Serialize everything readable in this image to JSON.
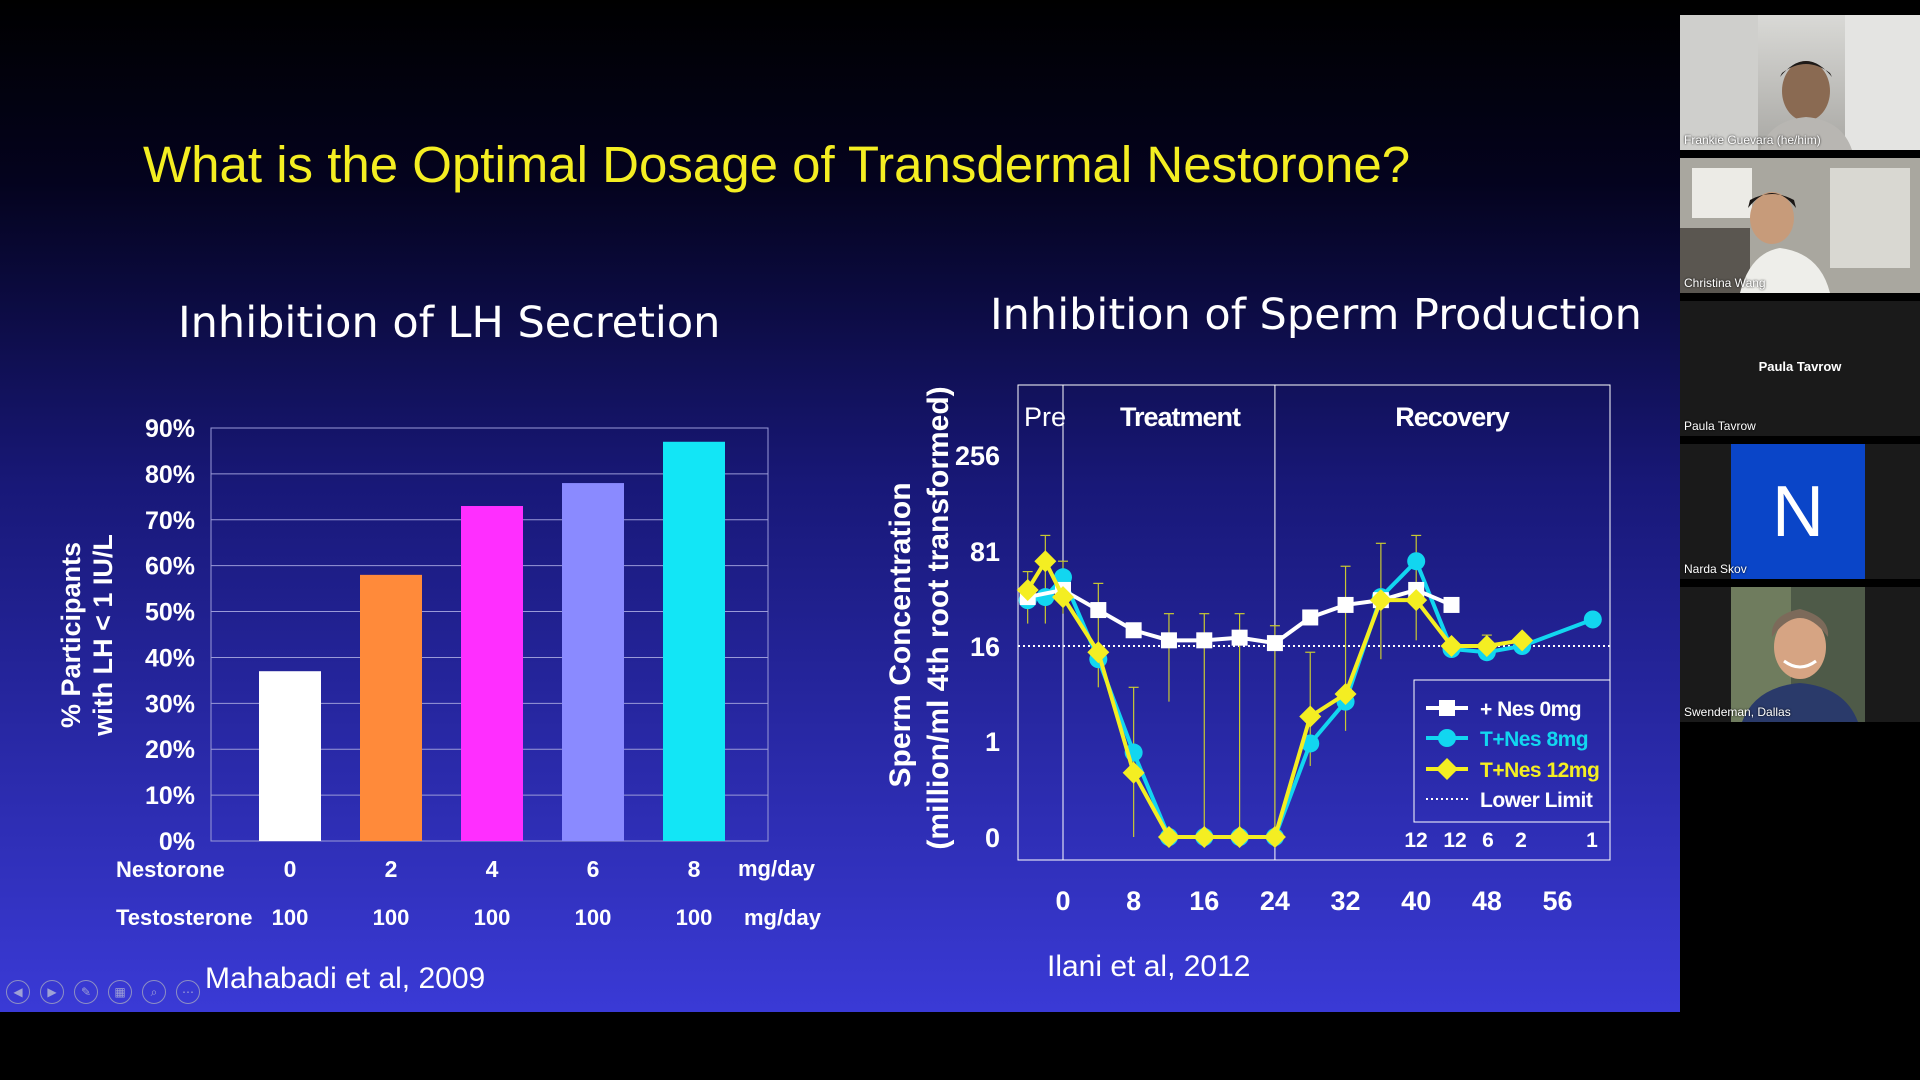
{
  "slide": {
    "title": "What is the Optimal Dosage of Transdermal Nestorone?",
    "left_subtitle": "Inhibition of LH Secretion",
    "right_subtitle": "Inhibition of Sperm Production",
    "left_citation": "Mahabadi et al, 2009",
    "right_citation": "Ilani et al, 2012",
    "colors": {
      "title": "#f4ee22",
      "background_top": "#000000",
      "background_bottom": "#3a3ad6"
    }
  },
  "chart_data": [
    {
      "type": "bar",
      "title": "Inhibition of LH Secretion",
      "ylabel_line1": "% Participants",
      "ylabel_line2": "with LH < 1 IU/L",
      "ylim": [
        0,
        90
      ],
      "yticks": [
        "0%",
        "10%",
        "20%",
        "30%",
        "40%",
        "50%",
        "60%",
        "70%",
        "80%",
        "90%"
      ],
      "categories": [
        "0",
        "2",
        "4",
        "6",
        "8"
      ],
      "values": [
        37,
        58,
        73,
        78,
        87
      ],
      "bar_colors": [
        "#ffffff",
        "#ff8a3a",
        "#ff2eff",
        "#8a8aff",
        "#12e6f6"
      ],
      "row_labels": {
        "nestorone": "Nestorone",
        "testosterone": "Testosterone"
      },
      "testosterone_values": [
        "100",
        "100",
        "100",
        "100",
        "100"
      ],
      "units": [
        "mg/day",
        "mg/day"
      ]
    },
    {
      "type": "line",
      "title": "Inhibition of Sperm Production",
      "ylabel_line1": "Sperm Concentration",
      "ylabel_line2": "(million/ml 4th root transformed)",
      "yticks": [
        "0",
        "1",
        "16",
        "81",
        "256"
      ],
      "xticks": [
        "0",
        "8",
        "16",
        "24",
        "32",
        "40",
        "48",
        "56"
      ],
      "phases": [
        "Pre",
        "Treatment",
        "Recovery"
      ],
      "lower_limit": 16,
      "counts": [
        "12",
        "12",
        "6",
        "2",
        "1"
      ],
      "series": [
        {
          "name": "+ Nes 0mg",
          "color": "#ffffff",
          "marker": "square",
          "x": [
            -4,
            0,
            4,
            8,
            12,
            16,
            20,
            24,
            28,
            32,
            36,
            40,
            44
          ],
          "y": [
            40,
            45,
            32,
            22,
            18,
            18,
            19,
            17,
            28,
            35,
            38,
            45,
            35
          ]
        },
        {
          "name": "T+Nes 8mg",
          "color": "#12d6f0",
          "marker": "circle",
          "x": [
            -4,
            -2,
            0,
            4,
            8,
            12,
            16,
            20,
            24,
            28,
            32,
            36,
            40,
            44,
            48,
            52,
            60
          ],
          "y": [
            38,
            40,
            55,
            12,
            0.6,
            0,
            0,
            0,
            0,
            0.9,
            4,
            40,
            70,
            15,
            14,
            16,
            27
          ]
        },
        {
          "name": "T+Nes 12mg",
          "color": "#f4ee22",
          "marker": "diamond",
          "x": [
            -4,
            -2,
            0,
            4,
            8,
            12,
            16,
            20,
            24,
            28,
            32,
            36,
            40,
            44,
            48,
            52
          ],
          "y": [
            45,
            70,
            40,
            14,
            0.2,
            0,
            0,
            0,
            0,
            2.5,
            5,
            38,
            38,
            16,
            16,
            18
          ]
        }
      ],
      "legend_labels": [
        "+ Nes 0mg",
        "T+Nes 8mg",
        "T+Nes 12mg",
        "Lower Limit"
      ],
      "legend_placement": "lower-right"
    }
  ],
  "controls": {
    "items": [
      {
        "name": "previous-slide-icon",
        "glyph": "◀"
      },
      {
        "name": "next-slide-icon",
        "glyph": "▶"
      },
      {
        "name": "pen-icon",
        "glyph": "✎"
      },
      {
        "name": "slides-grid-icon",
        "glyph": "▦"
      },
      {
        "name": "zoom-icon",
        "glyph": "⌕"
      },
      {
        "name": "more-options-icon",
        "glyph": "⋯"
      }
    ]
  },
  "participants": [
    {
      "name": "Frankie Guevara (he/him)",
      "video": true
    },
    {
      "name": "Christina Wang",
      "video": true
    },
    {
      "name": "Paula Tavrow",
      "video": false,
      "center_name": "Paula Tavrow"
    },
    {
      "name": "Narda Skov",
      "video": false,
      "initial": "N",
      "avatar_color": "#0a45c8"
    },
    {
      "name": "Swendeman, Dallas",
      "video": true
    }
  ]
}
